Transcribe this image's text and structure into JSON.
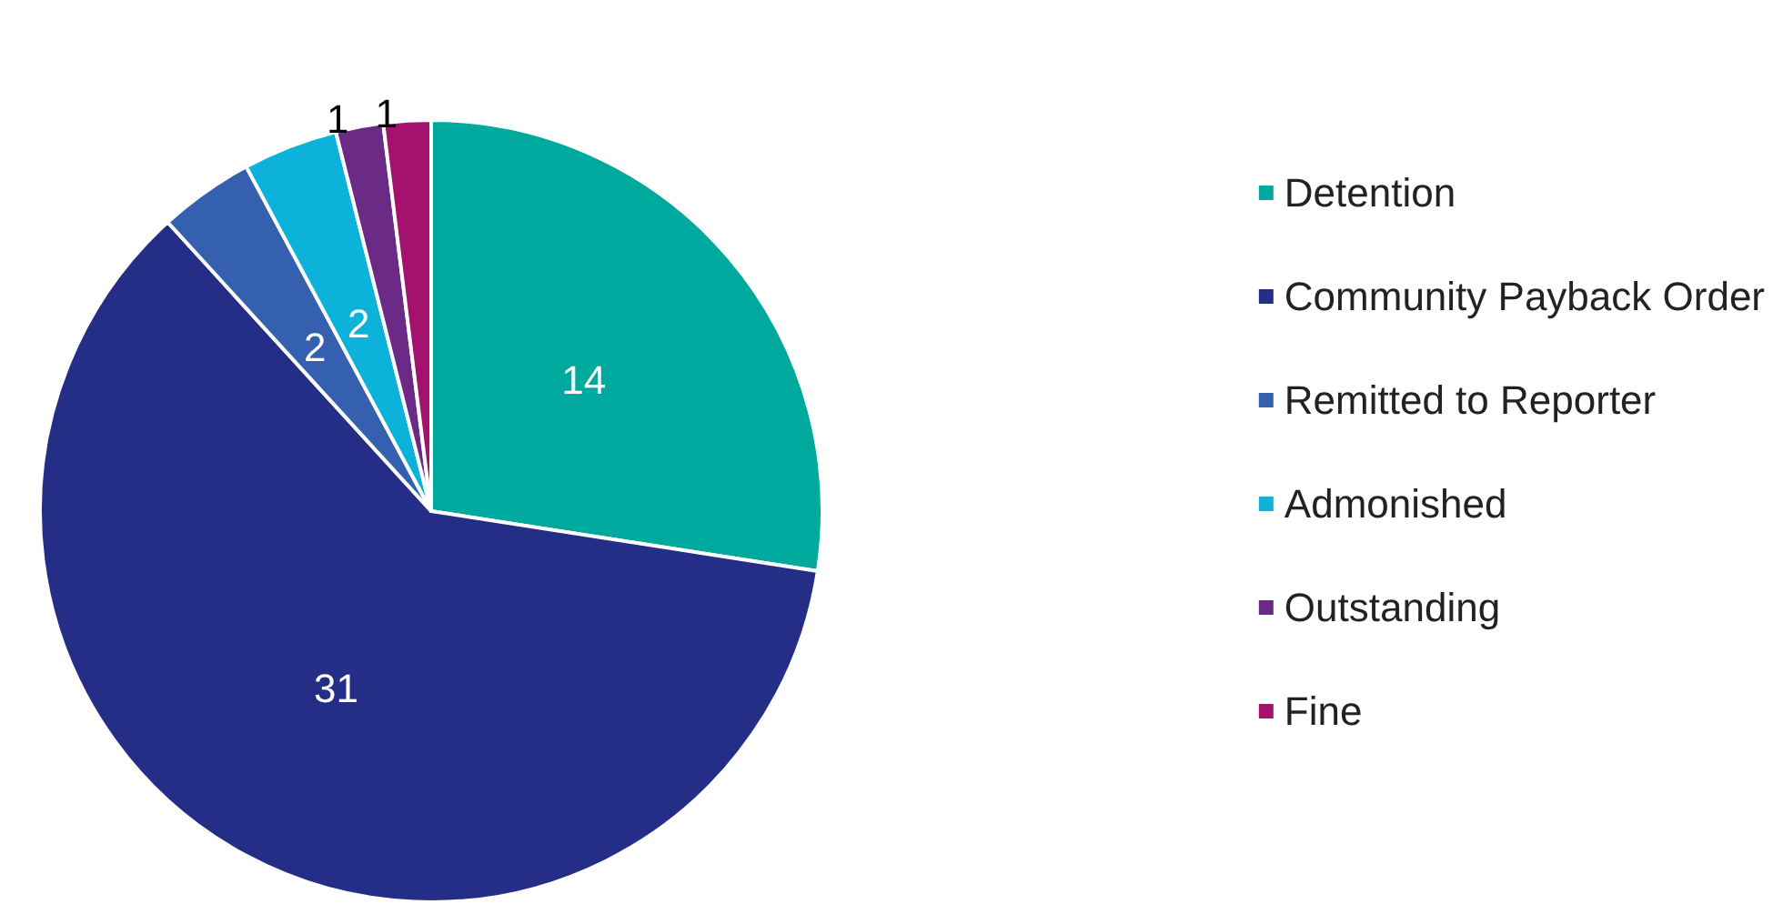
{
  "chart_data": {
    "type": "pie",
    "categories": [
      "Detention",
      "Community Payback Order",
      "Remitted to Reporter",
      "Admonished",
      "Outstanding",
      "Fine"
    ],
    "values": [
      14,
      31,
      2,
      2,
      1,
      1
    ],
    "colors": [
      "#00a99d",
      "#252e86",
      "#3560b0",
      "#0cb2d9",
      "#6a2a85",
      "#a3126e"
    ],
    "data_labels": true,
    "legend": "right"
  }
}
